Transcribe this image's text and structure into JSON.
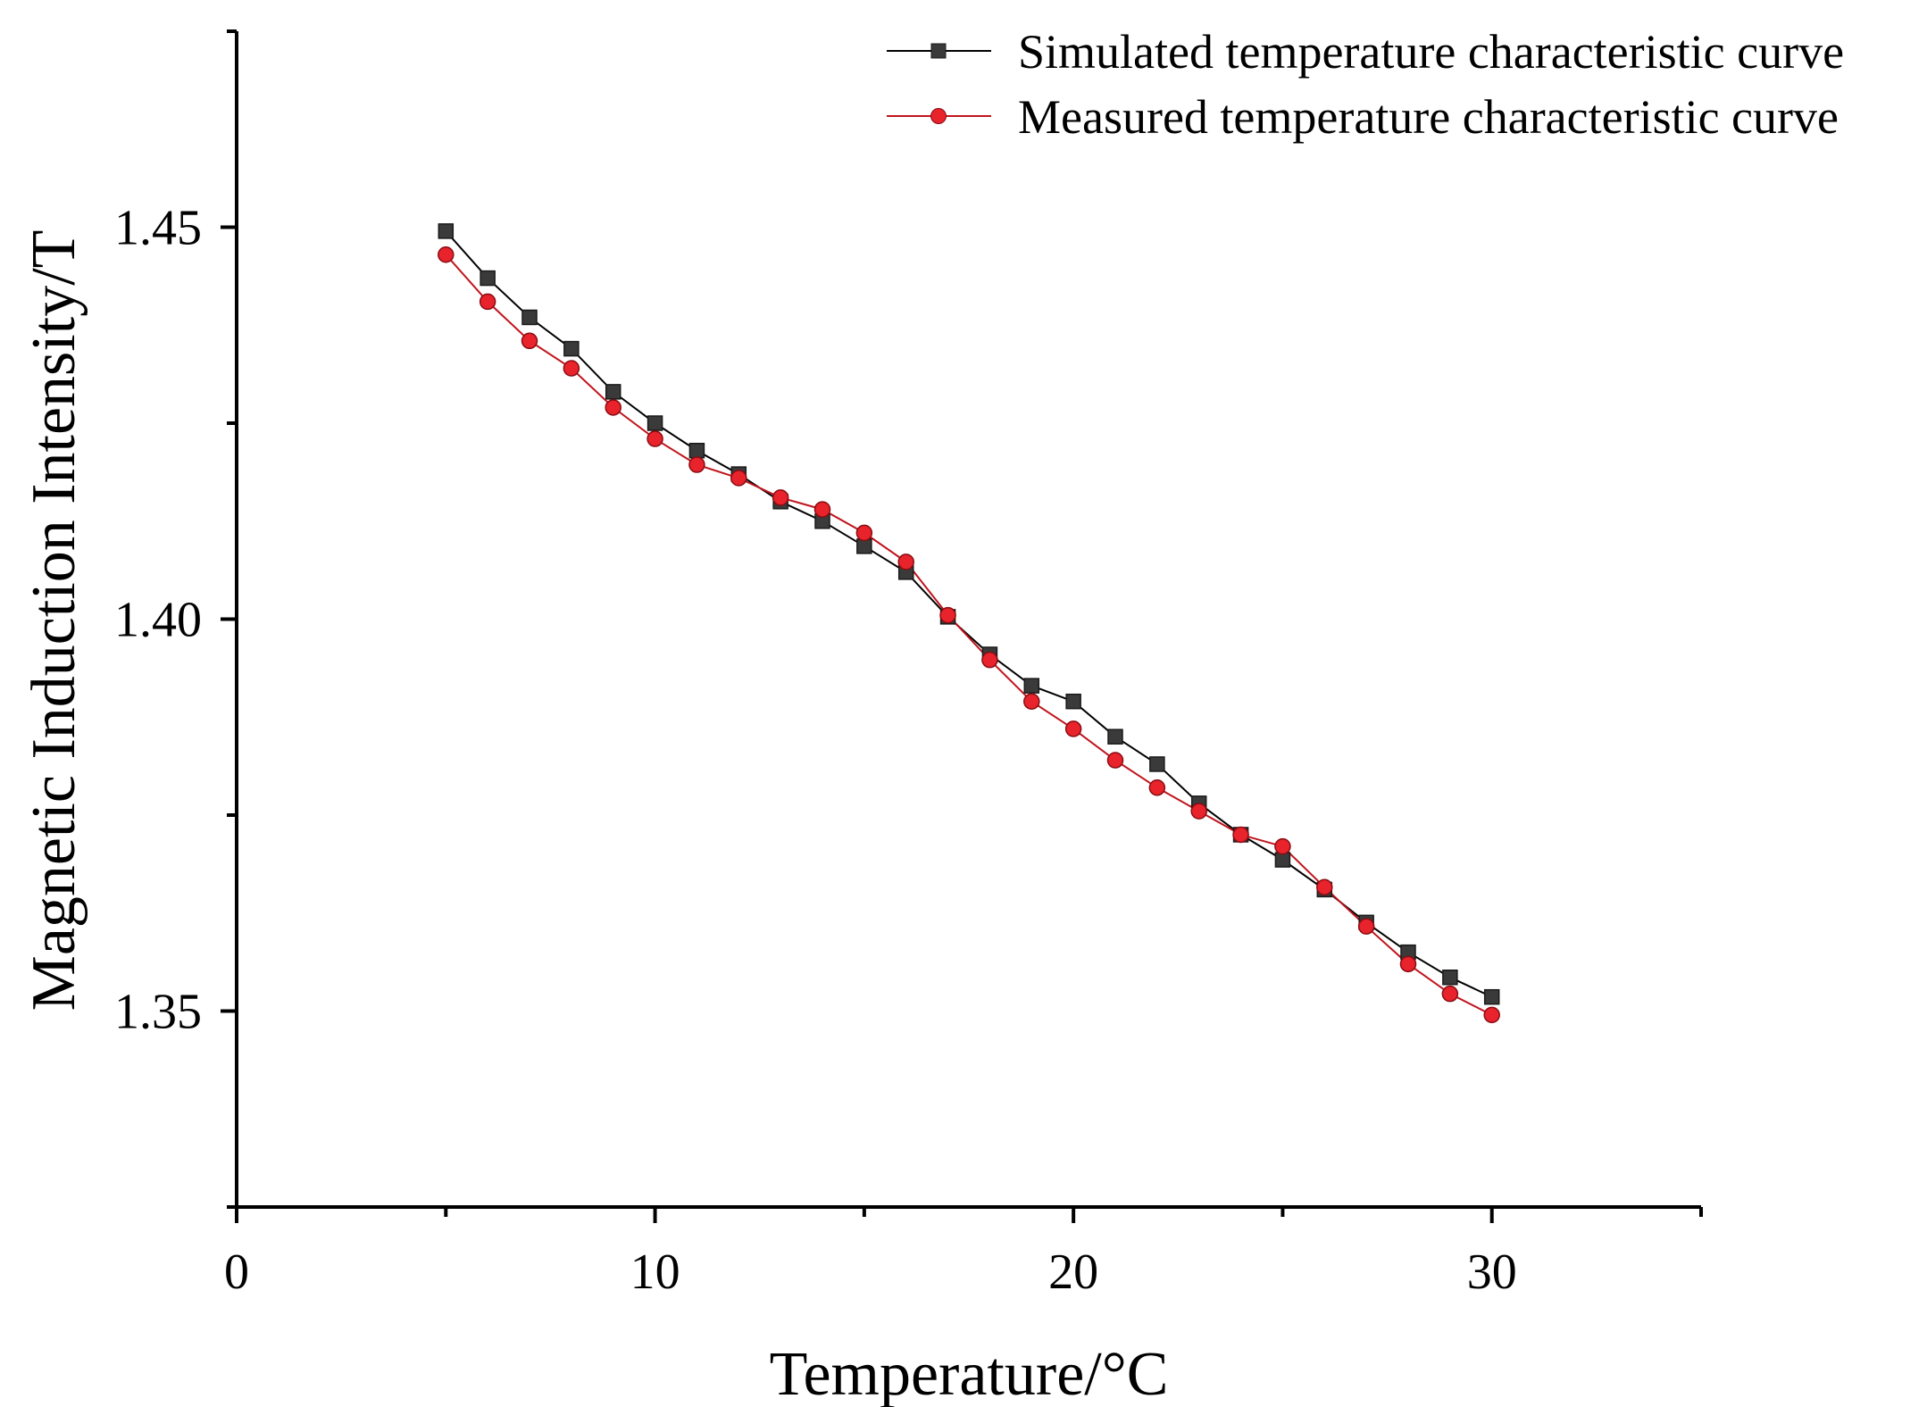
{
  "chart_data": {
    "type": "line",
    "title": "",
    "xlabel": "Temperature/°C",
    "ylabel": "Magnetic Induction Intensity/T",
    "xlim": [
      0,
      35
    ],
    "ylim": [
      1.325,
      1.475
    ],
    "x_major_ticks": [
      0,
      10,
      20,
      30
    ],
    "x_tick_labels": [
      "0",
      "10",
      "20",
      "30"
    ],
    "x_minor_ticks": [
      5,
      15,
      25,
      35
    ],
    "y_major_ticks": [
      1.35,
      1.4,
      1.45
    ],
    "y_tick_labels": [
      "1.35",
      "1.40",
      "1.45"
    ],
    "grid": false,
    "legend_position": "top-right",
    "x": [
      5,
      6,
      7,
      8,
      9,
      10,
      11,
      12,
      13,
      14,
      15,
      16,
      17,
      18,
      19,
      20,
      21,
      22,
      23,
      24,
      25,
      26,
      27,
      28,
      29,
      30
    ],
    "series": [
      {
        "name": "Simulated temperature characteristic curve",
        "color": "#000000",
        "marker_color": "#3a3a3a",
        "marker": "square",
        "values": [
          1.4495,
          1.4435,
          1.4385,
          1.4345,
          1.429,
          1.425,
          1.4215,
          1.4185,
          1.415,
          1.4125,
          1.4093,
          1.406,
          1.4003,
          1.3955,
          1.3915,
          1.3895,
          1.385,
          1.3815,
          1.3765,
          1.3725,
          1.3693,
          1.3655,
          1.3613,
          1.3575,
          1.3543,
          1.3518
        ]
      },
      {
        "name": "Measured temperature characteristic curve",
        "color": "#c0141c",
        "marker_color": "#e8232b",
        "marker": "circle",
        "values": [
          1.4465,
          1.4405,
          1.4355,
          1.432,
          1.427,
          1.423,
          1.4197,
          1.418,
          1.4155,
          1.414,
          1.411,
          1.4073,
          1.4005,
          1.3948,
          1.3895,
          1.386,
          1.382,
          1.3785,
          1.3755,
          1.3725,
          1.371,
          1.3658,
          1.3608,
          1.356,
          1.3522,
          1.3495
        ]
      }
    ]
  }
}
